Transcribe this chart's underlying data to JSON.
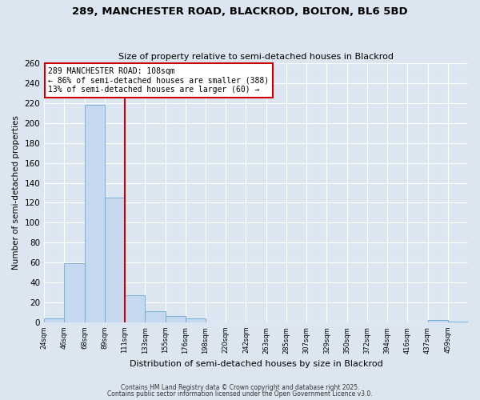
{
  "title": "289, MANCHESTER ROAD, BLACKROD, BOLTON, BL6 5BD",
  "subtitle": "Size of property relative to semi-detached houses in Blackrod",
  "xlabel": "Distribution of semi-detached houses by size in Blackrod",
  "ylabel": "Number of semi-detached properties",
  "bin_labels": [
    "24sqm",
    "46sqm",
    "68sqm",
    "89sqm",
    "111sqm",
    "133sqm",
    "155sqm",
    "176sqm",
    "198sqm",
    "220sqm",
    "242sqm",
    "263sqm",
    "285sqm",
    "307sqm",
    "329sqm",
    "350sqm",
    "372sqm",
    "394sqm",
    "416sqm",
    "437sqm",
    "459sqm"
  ],
  "counts": [
    4,
    59,
    218,
    125,
    27,
    11,
    6,
    4,
    0,
    0,
    0,
    0,
    0,
    0,
    0,
    0,
    0,
    0,
    0,
    2,
    1
  ],
  "bar_color": "#c5d8ef",
  "bar_edge_color": "#6aaad4",
  "vline_bin_index": 4,
  "vline_color": "#cc0000",
  "annotation_line1": "289 MANCHESTER ROAD: 108sqm",
  "annotation_line2": "← 86% of semi-detached houses are smaller (388)",
  "annotation_line3": "13% of semi-detached houses are larger (60) →",
  "annotation_box_color": "#cc0000",
  "ylim": [
    0,
    260
  ],
  "yticks": [
    0,
    20,
    40,
    60,
    80,
    100,
    120,
    140,
    160,
    180,
    200,
    220,
    240,
    260
  ],
  "bg_color": "#dce6f0",
  "grid_color": "#ffffff",
  "footer1": "Contains HM Land Registry data © Crown copyright and database right 2025.",
  "footer2": "Contains public sector information licensed under the Open Government Licence v3.0."
}
